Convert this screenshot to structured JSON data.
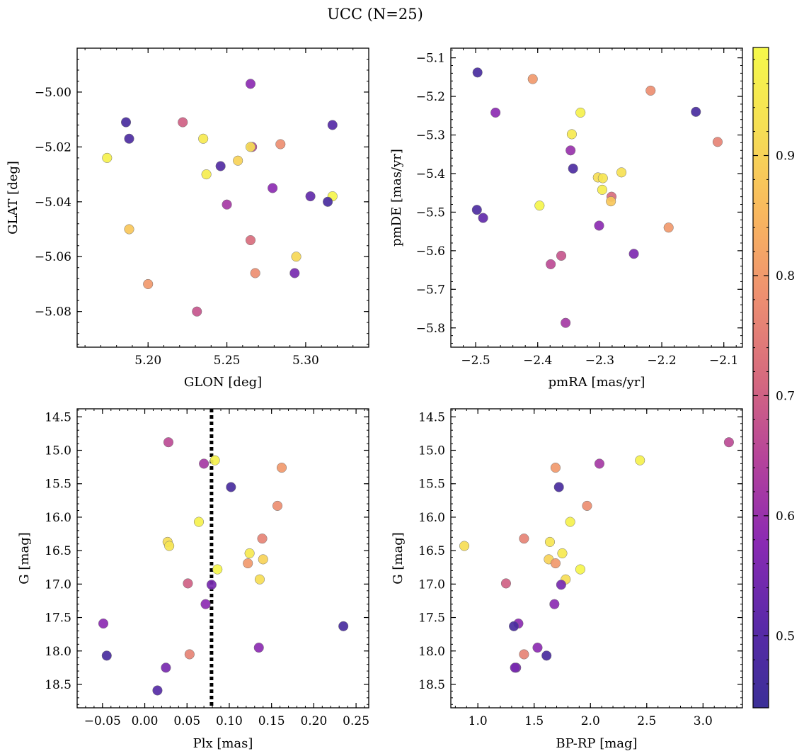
{
  "figure": {
    "title": "UCC (N=25)"
  },
  "chart_data": [
    {
      "type": "scatter",
      "panel": "top-left",
      "xlabel": "GLON [deg]",
      "ylabel": "GLAT [deg]",
      "xlim": [
        5.155,
        5.34
      ],
      "ylim": [
        -5.093,
        -4.984
      ],
      "y_inverted": false,
      "xticks": [
        5.2,
        5.25,
        5.3
      ],
      "xtick_labels": [
        "5.20",
        "5.25",
        "5.30"
      ],
      "yticks": [
        -5.08,
        -5.06,
        -5.04,
        -5.02,
        -5.0
      ],
      "ytick_labels": [
        "−5.08",
        "−5.06",
        "−5.04",
        "−5.02",
        "−5.00"
      ],
      "x": [
        5.265,
        5.186,
        5.188,
        5.222,
        5.235,
        5.174,
        5.266,
        5.265,
        5.284,
        5.317,
        5.246,
        5.257,
        5.237,
        5.279,
        5.303,
        5.317,
        5.314,
        5.25,
        5.188,
        5.265,
        5.294,
        5.268,
        5.293,
        5.2,
        5.231
      ],
      "y": [
        -4.997,
        -5.011,
        -5.017,
        -5.011,
        -5.017,
        -5.024,
        -5.02,
        -5.02,
        -5.019,
        -5.012,
        -5.027,
        -5.025,
        -5.03,
        -5.035,
        -5.038,
        -5.038,
        -5.04,
        -5.041,
        -5.05,
        -5.054,
        -5.06,
        -5.066,
        -5.066,
        -5.07,
        -5.08
      ],
      "color": [
        0.58,
        0.47,
        0.48,
        0.7,
        0.95,
        0.97,
        0.65,
        0.92,
        0.78,
        0.5,
        0.49,
        0.9,
        0.96,
        0.58,
        0.52,
        0.98,
        0.47,
        0.62,
        0.88,
        0.72,
        0.91,
        0.78,
        0.55,
        0.8,
        0.68
      ]
    },
    {
      "type": "scatter",
      "panel": "top-right",
      "xlabel": "pmRA [mas/yr]",
      "ylabel": "pmDE [mas/yr]",
      "xlim": [
        -2.54,
        -2.07
      ],
      "ylim": [
        -5.85,
        -5.075
      ],
      "y_inverted": false,
      "xticks": [
        -2.5,
        -2.4,
        -2.3,
        -2.2,
        -2.1
      ],
      "xtick_labels": [
        "−2.5",
        "−2.4",
        "−2.3",
        "−2.2",
        "−2.1"
      ],
      "yticks": [
        -5.8,
        -5.7,
        -5.6,
        -5.5,
        -5.4,
        -5.3,
        -5.2,
        -5.1
      ],
      "ytick_labels": [
        "−5.8",
        "−5.7",
        "−5.6",
        "−5.5",
        "−5.4",
        "−5.3",
        "−5.2",
        "−5.1"
      ],
      "x": [
        -2.497,
        -2.408,
        -2.218,
        -2.468,
        -2.331,
        -2.145,
        -2.345,
        -2.11,
        -2.347,
        -2.343,
        -2.303,
        -2.295,
        -2.265,
        -2.296,
        -2.281,
        -2.282,
        -2.397,
        -2.498,
        -2.488,
        -2.189,
        -2.301,
        -2.245,
        -2.362,
        -2.379,
        -2.355
      ],
      "y": [
        -5.138,
        -5.155,
        -5.185,
        -5.242,
        -5.242,
        -5.24,
        -5.298,
        -5.318,
        -5.34,
        -5.387,
        -5.41,
        -5.412,
        -5.397,
        -5.442,
        -5.46,
        -5.472,
        -5.483,
        -5.494,
        -5.515,
        -5.54,
        -5.535,
        -5.608,
        -5.613,
        -5.635,
        -5.787
      ],
      "color": [
        0.47,
        0.8,
        0.78,
        0.58,
        0.97,
        0.47,
        0.95,
        0.76,
        0.6,
        0.48,
        0.92,
        0.94,
        0.93,
        0.96,
        0.72,
        0.88,
        0.98,
        0.48,
        0.52,
        0.8,
        0.58,
        0.56,
        0.68,
        0.66,
        0.62
      ]
    },
    {
      "type": "scatter",
      "panel": "bottom-left",
      "xlabel": "Plx [mas]",
      "ylabel": "G [mag]",
      "xlim": [
        -0.08,
        0.265
      ],
      "ylim": [
        18.85,
        14.38
      ],
      "y_inverted": true,
      "xticks": [
        -0.05,
        0.0,
        0.05,
        0.1,
        0.15,
        0.2,
        0.25
      ],
      "xtick_labels": [
        "−0.05",
        "0.00",
        "0.05",
        "0.10",
        "0.15",
        "0.20",
        "0.25"
      ],
      "yticks": [
        14.5,
        15.0,
        15.5,
        16.0,
        16.5,
        17.0,
        17.5,
        18.0,
        18.5
      ],
      "ytick_labels": [
        "14.5",
        "15.0",
        "15.5",
        "16.0",
        "16.5",
        "17.0",
        "17.5",
        "18.0",
        "18.5"
      ],
      "reference_line": {
        "x": 0.079,
        "style": "dotted"
      },
      "x": [
        0.028,
        0.07,
        0.083,
        0.162,
        0.102,
        0.157,
        0.064,
        0.139,
        0.027,
        0.029,
        0.124,
        0.14,
        0.122,
        0.086,
        0.136,
        0.051,
        0.079,
        0.072,
        -0.049,
        0.235,
        0.135,
        -0.045,
        0.053,
        0.025,
        0.015
      ],
      "y": [
        14.88,
        15.2,
        15.15,
        15.26,
        15.55,
        15.83,
        16.07,
        16.32,
        16.37,
        16.43,
        16.54,
        16.63,
        16.69,
        16.78,
        16.93,
        16.99,
        17.01,
        17.3,
        17.59,
        17.63,
        17.95,
        18.07,
        18.05,
        18.25,
        18.59
      ],
      "color": [
        0.66,
        0.62,
        0.97,
        0.8,
        0.47,
        0.78,
        0.97,
        0.76,
        0.92,
        0.94,
        0.95,
        0.9,
        0.8,
        0.98,
        0.92,
        0.7,
        0.55,
        0.58,
        0.58,
        0.47,
        0.58,
        0.47,
        0.76,
        0.55,
        0.5
      ]
    },
    {
      "type": "scatter",
      "panel": "bottom-right",
      "xlabel": "BP-RP [mag]",
      "ylabel": "G [mag]",
      "xlim": [
        0.76,
        3.35
      ],
      "ylim": [
        18.85,
        14.38
      ],
      "y_inverted": true,
      "xticks": [
        1.0,
        1.5,
        2.0,
        2.5,
        3.0
      ],
      "xtick_labels": [
        "1.0",
        "1.5",
        "2.0",
        "2.5",
        "3.0"
      ],
      "yticks": [
        14.5,
        15.0,
        15.5,
        16.0,
        16.5,
        17.0,
        17.5,
        18.0,
        18.5
      ],
      "ytick_labels": [
        "14.5",
        "15.0",
        "15.5",
        "16.0",
        "16.5",
        "17.0",
        "17.5",
        "18.0",
        "18.5"
      ],
      "x": [
        3.23,
        2.44,
        2.08,
        1.69,
        1.72,
        1.97,
        1.82,
        1.41,
        0.88,
        1.64,
        1.75,
        1.63,
        1.69,
        1.91,
        1.78,
        1.25,
        1.74,
        1.68,
        1.36,
        1.32,
        1.53,
        1.41,
        1.61,
        1.34,
        1.33
      ],
      "y": [
        14.88,
        15.15,
        15.2,
        15.26,
        15.55,
        15.83,
        16.07,
        16.32,
        16.43,
        16.37,
        16.54,
        16.63,
        16.69,
        16.78,
        16.93,
        16.99,
        17.01,
        17.3,
        17.59,
        17.63,
        17.95,
        18.05,
        18.07,
        18.25,
        18.25
      ],
      "color": [
        0.66,
        0.97,
        0.62,
        0.8,
        0.47,
        0.78,
        0.97,
        0.76,
        0.92,
        0.94,
        0.95,
        0.9,
        0.8,
        0.98,
        0.92,
        0.7,
        0.55,
        0.58,
        0.58,
        0.47,
        0.58,
        0.76,
        0.47,
        0.55,
        0.55
      ]
    }
  ],
  "colorbar": {
    "cmap": "plasma",
    "range": [
      0.44,
      0.99
    ],
    "ticks": [
      0.5,
      0.6,
      0.7,
      0.8,
      0.9
    ],
    "tick_labels": [
      "0.5",
      "0.6",
      "0.7",
      "0.8",
      "0.9"
    ],
    "gradient_colors": [
      "#3b2f97",
      "#5a2aa8",
      "#8a2ab3",
      "#b5439b",
      "#d66a7e",
      "#ee9070",
      "#f9b85e",
      "#f6de55",
      "#f5f94a"
    ]
  }
}
